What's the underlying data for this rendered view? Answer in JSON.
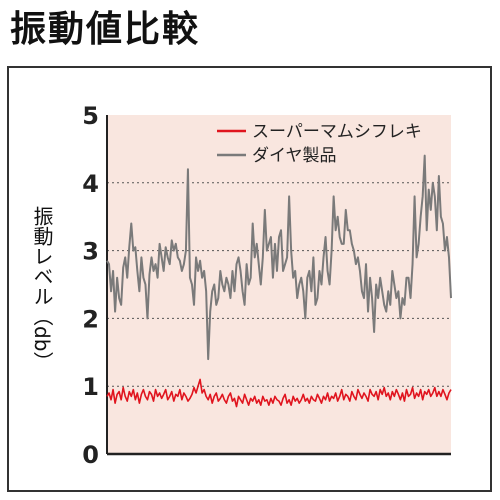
{
  "page": {
    "title": "振動値比較"
  },
  "chart_data": {
    "type": "line",
    "title": "振動値比較",
    "xlabel": "",
    "ylabel": "振動レベル（db）",
    "ylim": [
      0,
      5
    ],
    "yticks": [
      "0",
      "1",
      "2",
      "3",
      "4",
      "5"
    ],
    "grid": "dotted horizontal at 1, 2, 3, 4",
    "legend_position": "top-right",
    "background": "#f9e6df",
    "series": [
      {
        "name": "スーパーマムシフレキ",
        "color": "#e0141e",
        "values": [
          0.85,
          0.9,
          0.8,
          0.95,
          0.75,
          0.88,
          0.92,
          0.8,
          0.98,
          0.85,
          0.78,
          0.92,
          0.85,
          0.95,
          0.8,
          0.9,
          0.75,
          0.88,
          0.95,
          0.85,
          0.8,
          0.92,
          0.88,
          0.78,
          0.95,
          0.85,
          0.9,
          0.82,
          0.88,
          0.95,
          0.8,
          0.85,
          0.92,
          0.78,
          0.88,
          0.85,
          0.95,
          0.8,
          0.9,
          0.85,
          0.78,
          0.82,
          0.88,
          0.98,
          0.9,
          1.0,
          1.1,
          0.9,
          0.95,
          0.85,
          0.8,
          0.88,
          0.75,
          0.85,
          0.9,
          0.78,
          0.82,
          0.88,
          0.8,
          0.75,
          0.85,
          0.9,
          0.78,
          0.82,
          0.7,
          0.85,
          0.8,
          0.75,
          0.88,
          0.8,
          0.72,
          0.82,
          0.78,
          0.85,
          0.75,
          0.8,
          0.72,
          0.85,
          0.78,
          0.8,
          0.72,
          0.82,
          0.75,
          0.85,
          0.8,
          0.78,
          0.72,
          0.82,
          0.88,
          0.75,
          0.8,
          0.72,
          0.85,
          0.78,
          0.82,
          0.75,
          0.8,
          0.88,
          0.78,
          0.82,
          0.75,
          0.85,
          0.8,
          0.78,
          0.88,
          0.82,
          0.75,
          0.85,
          0.8,
          0.9,
          0.78,
          0.85,
          0.82,
          0.9,
          0.78,
          0.85,
          0.95,
          0.8,
          0.88,
          0.85,
          0.78,
          0.92,
          0.85,
          0.8,
          0.95,
          0.88,
          0.82,
          0.9,
          0.85,
          0.78,
          0.95,
          0.88,
          0.85,
          0.92,
          0.8,
          0.95,
          0.88,
          0.98,
          0.85,
          0.9,
          0.8,
          0.92,
          0.85,
          0.95,
          0.88,
          0.8,
          0.9,
          0.78,
          0.95,
          0.85,
          0.88,
          0.98,
          0.82,
          0.9,
          0.85,
          0.95,
          0.8,
          0.92,
          0.88,
          0.95,
          0.85,
          0.9,
          0.98,
          0.85,
          0.92,
          0.85,
          0.95,
          0.88,
          0.8,
          0.9,
          0.95
        ]
      },
      {
        "name": "ダイヤ製品",
        "color": "#7a7a7a",
        "values": [
          2.85,
          2.8,
          2.4,
          2.7,
          2.1,
          2.6,
          2.3,
          2.2,
          2.75,
          2.9,
          2.6,
          3.05,
          3.4,
          3.0,
          3.05,
          2.7,
          2.4,
          2.9,
          2.6,
          2.5,
          2.0,
          2.65,
          2.9,
          2.7,
          2.8,
          2.6,
          3.1,
          2.9,
          2.7,
          3.05,
          2.9,
          2.8,
          3.15,
          3.0,
          3.1,
          2.9,
          2.85,
          2.7,
          2.8,
          3.0,
          4.2,
          2.6,
          2.5,
          2.2,
          2.9,
          2.7,
          2.85,
          2.6,
          2.7,
          2.4,
          1.4,
          2.1,
          2.4,
          2.5,
          2.2,
          2.3,
          2.7,
          2.5,
          2.4,
          2.6,
          2.5,
          2.3,
          2.7,
          2.4,
          2.8,
          2.9,
          2.7,
          2.4,
          2.2,
          2.8,
          2.5,
          2.6,
          3.4,
          2.9,
          3.1,
          2.8,
          2.5,
          2.9,
          3.6,
          3.0,
          3.1,
          3.2,
          2.6,
          3.1,
          2.7,
          3.2,
          3.3,
          2.7,
          2.8,
          2.9,
          3.8,
          3.0,
          2.6,
          2.7,
          2.3,
          2.5,
          2.6,
          2.4,
          2.0,
          2.6,
          2.7,
          2.4,
          2.9,
          2.2,
          2.3,
          2.7,
          2.5,
          2.9,
          3.2,
          2.7,
          2.5,
          3.0,
          3.8,
          3.3,
          3.5,
          3.2,
          3.1,
          3.1,
          3.6,
          3.3,
          3.3,
          3.1,
          3.0,
          2.8,
          2.9,
          2.7,
          2.4,
          2.3,
          2.8,
          2.1,
          2.6,
          2.3,
          1.8,
          2.5,
          2.3,
          2.6,
          2.4,
          2.2,
          2.1,
          2.4,
          2.2,
          2.7,
          2.5,
          2.3,
          2.4,
          2.0,
          2.3,
          2.2,
          2.6,
          2.6,
          2.3,
          2.8,
          3.8,
          2.9,
          3.1,
          3.5,
          3.8,
          4.4,
          3.3,
          3.9,
          3.6,
          4.0,
          3.8,
          3.3,
          4.1,
          3.5,
          3.4,
          3.0,
          3.2,
          2.9,
          2.3
        ]
      }
    ]
  }
}
